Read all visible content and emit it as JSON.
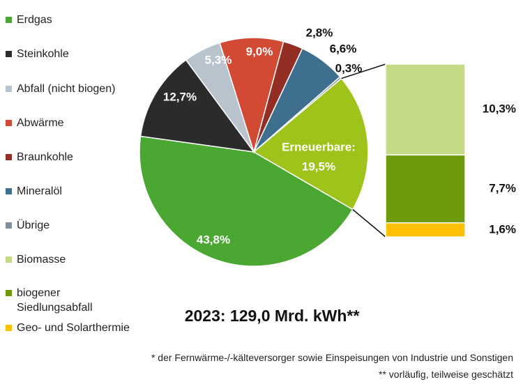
{
  "chart_data": {
    "type": "pie",
    "title": "2023: 129,0 Mrd. kWh**",
    "categories": [
      "Erdgas",
      "Steinkohle",
      "Abfall (nicht biogen)",
      "Abwärme",
      "Braunkohle",
      "Mineralöl",
      "Übrige",
      "Erneuerbare:"
    ],
    "values": [
      43.8,
      12.7,
      5.3,
      9.0,
      2.8,
      6.6,
      0.3,
      19.5
    ],
    "value_labels": [
      "43,8%",
      "12,7%",
      "5,3%",
      "9,0%",
      "2,8%",
      "6,6%",
      "0,3%",
      "19,5%"
    ],
    "colors": [
      "#4aa832",
      "#2b2b2b",
      "#b8c3cd",
      "#d24a34",
      "#922e24",
      "#3f6f8f",
      "#7f8f9c",
      "#9ec31a"
    ],
    "breakdown": {
      "categories": [
        "Biomasse",
        "biogener Siedlungsabfall",
        "Geo- und Solarthermie"
      ],
      "values": [
        10.3,
        7.7,
        1.6
      ],
      "value_labels": [
        "10,3%",
        "7,7%",
        "1,6%"
      ],
      "colors": [
        "#c4da86",
        "#6f9a0c",
        "#ffc000"
      ]
    },
    "notes": [
      "* der Fernwärme-/-kälteversorger sowie Einspeisungen von Industrie und Sonstigen",
      "** vorläufig, teilweise geschätzt"
    ]
  }
}
